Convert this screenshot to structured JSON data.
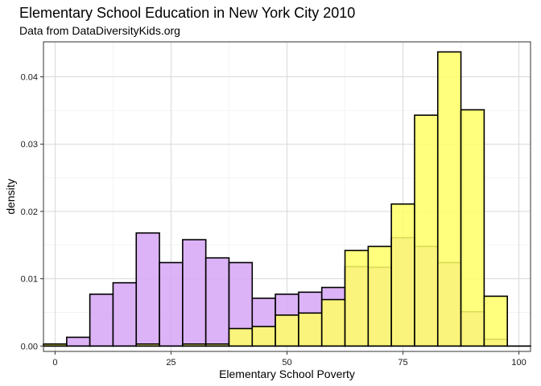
{
  "chart_data": {
    "type": "bar",
    "title": "Elementary School Education in New York City 2010",
    "subtitle": "Data from DataDiversityKids.org",
    "xlabel": "Elementary School Poverty",
    "ylabel": "density",
    "xlim": [
      -2.5,
      102.5
    ],
    "ylim": [
      -0.0008,
      0.0452
    ],
    "x_ticks": [
      "0",
      "25",
      "50",
      "75",
      "100"
    ],
    "y_ticks": [
      "0.00",
      "0.01",
      "0.02",
      "0.03",
      "0.04"
    ],
    "grid": true,
    "bin_width": 5,
    "bin_centers": [
      0,
      5,
      10,
      15,
      20,
      25,
      30,
      35,
      40,
      45,
      50,
      55,
      60,
      65,
      70,
      75,
      80,
      85,
      90,
      95,
      100
    ],
    "series": [
      {
        "color": "#d6a6f5",
        "values": [
          0.0002,
          0.0013,
          0.0077,
          0.0094,
          0.0168,
          0.0124,
          0.0158,
          0.0131,
          0.0124,
          0.0071,
          0.0077,
          0.008,
          0.0087,
          0.0118,
          0.0117,
          0.0161,
          0.0148,
          0.0124,
          0.0051,
          0.001,
          0.0
        ]
      },
      {
        "color": "#ffff66",
        "values": [
          0.0003,
          0.0,
          0.0,
          0.0,
          0.0003,
          0.0,
          0.0003,
          0.0003,
          0.0026,
          0.0029,
          0.0046,
          0.0049,
          0.0069,
          0.0142,
          0.0148,
          0.0211,
          0.0343,
          0.0437,
          0.0351,
          0.0074,
          0.0
        ]
      }
    ]
  }
}
